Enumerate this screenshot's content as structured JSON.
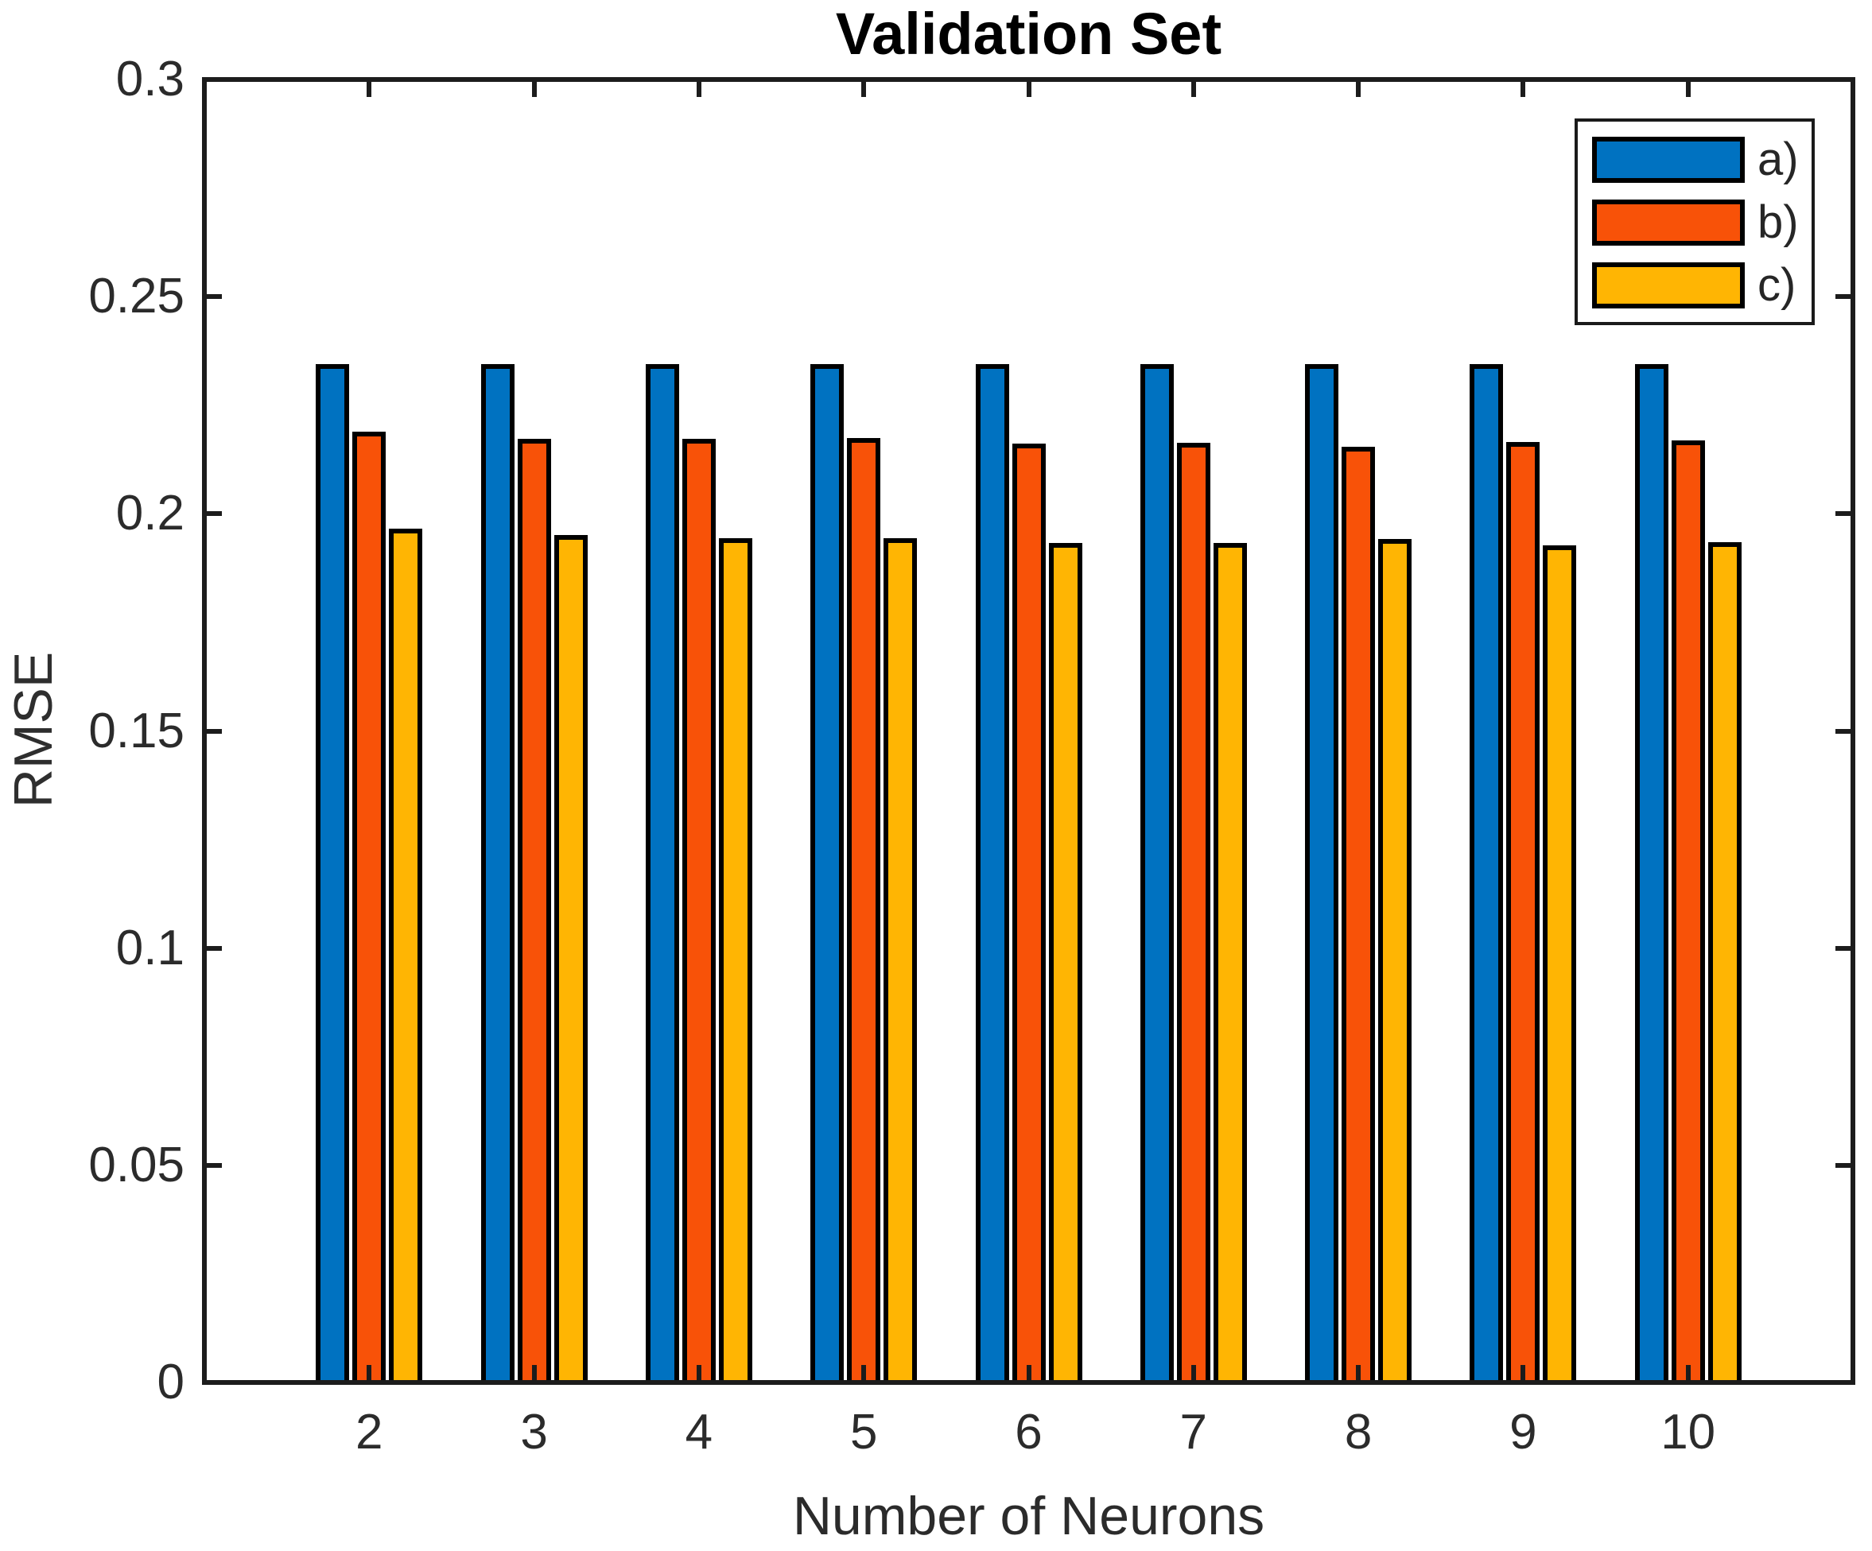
{
  "chart_data": {
    "type": "bar",
    "title": "Validation Set",
    "xlabel": "Number of Neurons",
    "ylabel": "RMSE",
    "categories": [
      2,
      3,
      4,
      5,
      6,
      7,
      8,
      9,
      10
    ],
    "series": [
      {
        "name": "a)",
        "color": "#0072C1",
        "values": [
          0.2345,
          0.2345,
          0.2345,
          0.2345,
          0.2345,
          0.2345,
          0.2345,
          0.2345,
          0.2345
        ]
      },
      {
        "name": "b)",
        "color": "#F85208",
        "values": [
          0.219,
          0.2172,
          0.2172,
          0.2174,
          0.2162,
          0.2163,
          0.2154,
          0.2166,
          0.2169
        ]
      },
      {
        "name": "c)",
        "color": "#FFB503",
        "values": [
          0.1966,
          0.1951,
          0.1944,
          0.1944,
          0.1933,
          0.1933,
          0.1942,
          0.1928,
          0.1935
        ]
      }
    ],
    "xlim": [
      1,
      11
    ],
    "ylim": [
      0,
      0.3
    ],
    "yticks": [
      {
        "value": 0,
        "label": "0"
      },
      {
        "value": 0.05,
        "label": "0.05"
      },
      {
        "value": 0.1,
        "label": "0.1"
      },
      {
        "value": 0.15,
        "label": "0.15"
      },
      {
        "value": 0.2,
        "label": "0.2"
      },
      {
        "value": 0.25,
        "label": "0.25"
      },
      {
        "value": 0.3,
        "label": "0.3"
      }
    ],
    "grid": false,
    "legend_position": "northeast",
    "bar_edge_color": "#000000",
    "axis_color": "#1C1C1C",
    "text_color": "#2B2B2B"
  }
}
